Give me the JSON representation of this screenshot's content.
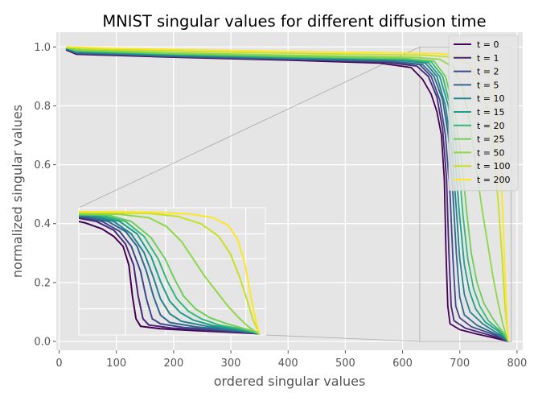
{
  "chart_data": {
    "type": "line",
    "title": "MNIST singular values for different diffusion time",
    "xlabel": "ordered singular values",
    "ylabel": "normalized singular values",
    "xlim": [
      -5,
      810
    ],
    "ylim": [
      -0.03,
      1.05
    ],
    "xticks": [
      0,
      100,
      200,
      300,
      400,
      500,
      600,
      700,
      800
    ],
    "yticks": [
      0.0,
      0.2,
      0.4,
      0.6,
      0.8,
      1.0
    ],
    "xtick_labels": [
      "0",
      "100",
      "200",
      "300",
      "400",
      "500",
      "600",
      "700",
      "800"
    ],
    "ytick_labels": [
      "0.0",
      "0.2",
      "0.4",
      "0.6",
      "0.8",
      "1.0"
    ],
    "grid": true,
    "legend_position": "top-right",
    "series": [
      {
        "name": "t = 0",
        "color": "#440154",
        "values": [
          [
            12,
            0.99
          ],
          [
            30,
            0.975
          ],
          [
            200,
            0.965
          ],
          [
            400,
            0.955
          ],
          [
            560,
            0.945
          ],
          [
            615,
            0.93
          ],
          [
            635,
            0.89
          ],
          [
            650,
            0.84
          ],
          [
            660,
            0.78
          ],
          [
            668,
            0.7
          ],
          [
            673,
            0.55
          ],
          [
            676,
            0.3
          ],
          [
            679,
            0.12
          ],
          [
            683,
            0.06
          ],
          [
            700,
            0.04
          ],
          [
            730,
            0.025
          ],
          [
            760,
            0.012
          ],
          [
            785,
            0.0
          ]
        ]
      },
      {
        "name": "t = 1",
        "color": "#482677",
        "values": [
          [
            12,
            0.992
          ],
          [
            30,
            0.977
          ],
          [
            200,
            0.966
          ],
          [
            400,
            0.957
          ],
          [
            570,
            0.948
          ],
          [
            625,
            0.935
          ],
          [
            645,
            0.9
          ],
          [
            660,
            0.83
          ],
          [
            670,
            0.72
          ],
          [
            677,
            0.55
          ],
          [
            681,
            0.3
          ],
          [
            685,
            0.12
          ],
          [
            690,
            0.07
          ],
          [
            710,
            0.045
          ],
          [
            740,
            0.028
          ],
          [
            765,
            0.014
          ],
          [
            785,
            0.0
          ]
        ]
      },
      {
        "name": "t = 2",
        "color": "#3e4989",
        "values": [
          [
            12,
            0.993
          ],
          [
            30,
            0.978
          ],
          [
            200,
            0.967
          ],
          [
            400,
            0.958
          ],
          [
            575,
            0.95
          ],
          [
            630,
            0.94
          ],
          [
            650,
            0.9
          ],
          [
            665,
            0.82
          ],
          [
            675,
            0.7
          ],
          [
            683,
            0.5
          ],
          [
            688,
            0.28
          ],
          [
            693,
            0.12
          ],
          [
            700,
            0.08
          ],
          [
            720,
            0.05
          ],
          [
            750,
            0.03
          ],
          [
            770,
            0.015
          ],
          [
            785,
            0.0
          ]
        ]
      },
      {
        "name": "t = 5",
        "color": "#31688e",
        "values": [
          [
            12,
            0.994
          ],
          [
            30,
            0.98
          ],
          [
            200,
            0.969
          ],
          [
            400,
            0.96
          ],
          [
            580,
            0.952
          ],
          [
            635,
            0.94
          ],
          [
            655,
            0.9
          ],
          [
            670,
            0.82
          ],
          [
            680,
            0.7
          ],
          [
            688,
            0.5
          ],
          [
            694,
            0.3
          ],
          [
            700,
            0.15
          ],
          [
            708,
            0.09
          ],
          [
            730,
            0.055
          ],
          [
            755,
            0.032
          ],
          [
            772,
            0.016
          ],
          [
            785,
            0.0
          ]
        ]
      },
      {
        "name": "t = 10",
        "color": "#26828e",
        "values": [
          [
            12,
            0.995
          ],
          [
            30,
            0.982
          ],
          [
            200,
            0.971
          ],
          [
            400,
            0.962
          ],
          [
            590,
            0.955
          ],
          [
            640,
            0.945
          ],
          [
            660,
            0.9
          ],
          [
            675,
            0.8
          ],
          [
            686,
            0.65
          ],
          [
            694,
            0.45
          ],
          [
            700,
            0.28
          ],
          [
            708,
            0.16
          ],
          [
            718,
            0.1
          ],
          [
            740,
            0.06
          ],
          [
            760,
            0.035
          ],
          [
            775,
            0.017
          ],
          [
            785,
            0.0
          ]
        ]
      },
      {
        "name": "t = 15",
        "color": "#1f9e89",
        "values": [
          [
            12,
            0.996
          ],
          [
            30,
            0.984
          ],
          [
            200,
            0.973
          ],
          [
            400,
            0.964
          ],
          [
            595,
            0.957
          ],
          [
            645,
            0.947
          ],
          [
            665,
            0.9
          ],
          [
            680,
            0.8
          ],
          [
            692,
            0.62
          ],
          [
            700,
            0.42
          ],
          [
            708,
            0.26
          ],
          [
            717,
            0.17
          ],
          [
            728,
            0.11
          ],
          [
            745,
            0.065
          ],
          [
            765,
            0.038
          ],
          [
            777,
            0.018
          ],
          [
            785,
            0.0
          ]
        ]
      },
      {
        "name": "t = 20",
        "color": "#35b779",
        "values": [
          [
            12,
            0.997
          ],
          [
            30,
            0.986
          ],
          [
            200,
            0.975
          ],
          [
            400,
            0.966
          ],
          [
            600,
            0.959
          ],
          [
            650,
            0.95
          ],
          [
            670,
            0.9
          ],
          [
            686,
            0.78
          ],
          [
            698,
            0.6
          ],
          [
            706,
            0.42
          ],
          [
            714,
            0.28
          ],
          [
            724,
            0.18
          ],
          [
            735,
            0.12
          ],
          [
            750,
            0.07
          ],
          [
            768,
            0.04
          ],
          [
            778,
            0.02
          ],
          [
            785,
            0.0
          ]
        ]
      },
      {
        "name": "t = 25",
        "color": "#6ece58",
        "values": [
          [
            12,
            0.998
          ],
          [
            30,
            0.988
          ],
          [
            200,
            0.977
          ],
          [
            400,
            0.968
          ],
          [
            605,
            0.961
          ],
          [
            655,
            0.952
          ],
          [
            675,
            0.9
          ],
          [
            692,
            0.77
          ],
          [
            704,
            0.6
          ],
          [
            712,
            0.44
          ],
          [
            720,
            0.3
          ],
          [
            730,
            0.2
          ],
          [
            742,
            0.13
          ],
          [
            757,
            0.08
          ],
          [
            770,
            0.045
          ],
          [
            780,
            0.02
          ],
          [
            785,
            0.0
          ]
        ]
      },
      {
        "name": "t = 50",
        "color": "#8fd744",
        "values": [
          [
            12,
            0.999
          ],
          [
            40,
            0.99
          ],
          [
            200,
            0.98
          ],
          [
            400,
            0.972
          ],
          [
            620,
            0.965
          ],
          [
            665,
            0.958
          ],
          [
            690,
            0.93
          ],
          [
            705,
            0.86
          ],
          [
            718,
            0.74
          ],
          [
            728,
            0.6
          ],
          [
            738,
            0.46
          ],
          [
            748,
            0.34
          ],
          [
            758,
            0.22
          ],
          [
            767,
            0.13
          ],
          [
            775,
            0.06
          ],
          [
            781,
            0.02
          ],
          [
            785,
            0.0
          ]
        ]
      },
      {
        "name": "t = 100",
        "color": "#c8e020",
        "values": [
          [
            12,
            1.0
          ],
          [
            60,
            0.993
          ],
          [
            250,
            0.984
          ],
          [
            450,
            0.977
          ],
          [
            640,
            0.972
          ],
          [
            690,
            0.965
          ],
          [
            715,
            0.94
          ],
          [
            735,
            0.88
          ],
          [
            750,
            0.78
          ],
          [
            760,
            0.64
          ],
          [
            768,
            0.45
          ],
          [
            774,
            0.28
          ],
          [
            779,
            0.12
          ],
          [
            783,
            0.04
          ],
          [
            785,
            0.0
          ]
        ]
      },
      {
        "name": "t = 200",
        "color": "#fde725",
        "values": [
          [
            12,
            1.0
          ],
          [
            100,
            0.995
          ],
          [
            300,
            0.988
          ],
          [
            500,
            0.982
          ],
          [
            660,
            0.978
          ],
          [
            700,
            0.972
          ],
          [
            725,
            0.96
          ],
          [
            745,
            0.93
          ],
          [
            758,
            0.87
          ],
          [
            766,
            0.76
          ],
          [
            772,
            0.58
          ],
          [
            776,
            0.38
          ],
          [
            780,
            0.18
          ],
          [
            783,
            0.06
          ],
          [
            785,
            0.0
          ]
        ]
      }
    ],
    "inset": {
      "xlim": [
        630,
        790
      ],
      "ylim": [
        -0.01,
        1.01
      ],
      "zoom_region": {
        "xmin": 630,
        "xmax": 790,
        "ymin": 0.0,
        "ymax": 1.0
      }
    }
  }
}
